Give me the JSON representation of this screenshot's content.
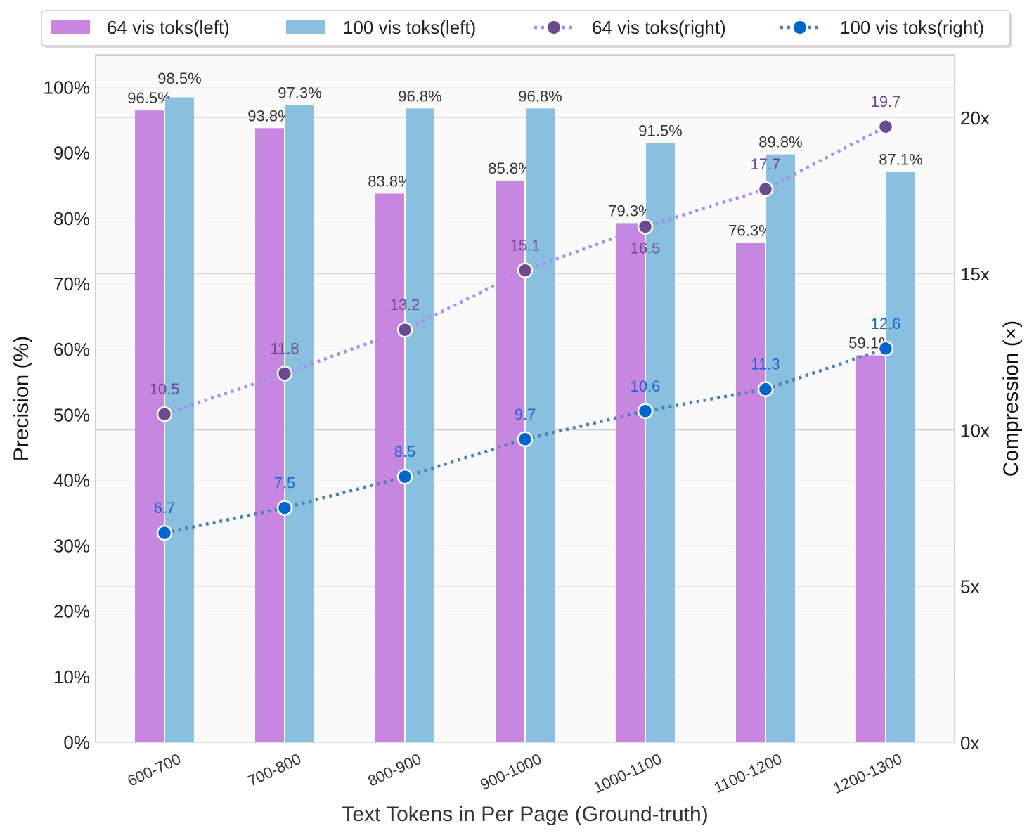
{
  "chart_data": {
    "type": "bar",
    "title": "",
    "xlabel": "Text Tokens in Per Page (Ground-truth)",
    "ylabel": "Precision (%)",
    "ylabel_right": "Compression (×)",
    "categories": [
      "600-700",
      "700-800",
      "800-900",
      "900-1000",
      "1000-1100",
      "1100-1200",
      "1200-1300"
    ],
    "ylim": [
      0,
      105
    ],
    "ylim_right": [
      0,
      22
    ],
    "yticks": [
      "0%",
      "10%",
      "20%",
      "30%",
      "40%",
      "50%",
      "60%",
      "70%",
      "80%",
      "90%",
      "100%"
    ],
    "yticks_right": [
      "0x",
      "5x",
      "10x",
      "15x",
      "20x"
    ],
    "grid": true,
    "legend_placement": "top",
    "series": [
      {
        "name": "64 vis toks(left)",
        "kind": "bar",
        "axis": "left",
        "color": "#c787e0",
        "values": [
          96.5,
          93.8,
          83.8,
          85.8,
          79.3,
          76.3,
          59.1
        ],
        "labels": [
          "96.5%",
          "93.8%",
          "83.8%",
          "85.8%",
          "79.3%",
          "76.3%",
          "59.1%"
        ]
      },
      {
        "name": "100 vis toks(left)",
        "kind": "bar",
        "axis": "left",
        "color": "#89bfdf",
        "values": [
          98.5,
          97.3,
          96.8,
          96.8,
          91.5,
          89.8,
          87.1
        ],
        "labels": [
          "98.5%",
          "97.3%",
          "96.8%",
          "96.8%",
          "91.5%",
          "89.8%",
          "87.1%"
        ]
      },
      {
        "name": "64 vis toks(right)",
        "kind": "line",
        "axis": "right",
        "color": "#a58cf5",
        "marker_color": "#6b4a90",
        "label_color": "#6b4a90",
        "values": [
          10.5,
          11.8,
          13.2,
          15.1,
          16.5,
          17.7,
          19.7
        ],
        "labels": [
          "10.5",
          "11.8",
          "13.2",
          "15.1",
          "16.5",
          "17.7",
          "19.7"
        ]
      },
      {
        "name": "100 vis toks(right)",
        "kind": "line",
        "axis": "right",
        "color": "#4a80b4",
        "marker_color": "#0066cc",
        "label_color": "#1a66cc",
        "values": [
          6.7,
          7.5,
          8.5,
          9.7,
          10.6,
          11.3,
          12.6
        ],
        "labels": [
          "6.7",
          "7.5",
          "8.5",
          "9.7",
          "10.6",
          "11.3",
          "12.6"
        ]
      }
    ]
  }
}
